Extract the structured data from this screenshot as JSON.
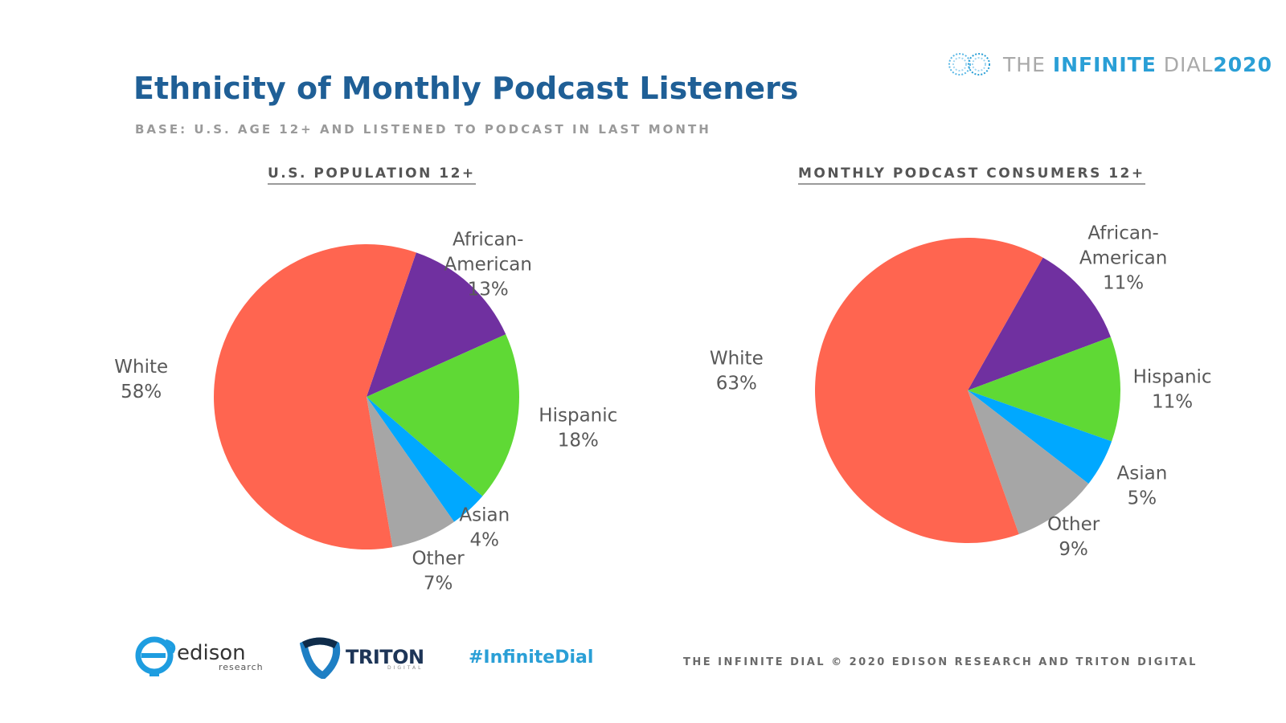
{
  "brand": {
    "prefix": "THE ",
    "name_bold": "INFINITE",
    "name_thin": " DIAL",
    "year": "2020"
  },
  "title": "Ethnicity of Monthly Podcast Listeners",
  "subtitle": "BASE: U.S. AGE 12+ AND LISTENED TO PODCAST IN LAST MONTH",
  "colors": {
    "White": "#ff6550",
    "African-American": "#7030a0",
    "Hispanic": "#5fd935",
    "Asian": "#00a8ff",
    "Other": "#a6a6a6"
  },
  "chart_data": [
    {
      "type": "pie",
      "title": "U.S. POPULATION 12+",
      "categories": [
        "African-American",
        "Hispanic",
        "Asian",
        "Other",
        "White"
      ],
      "values": [
        13,
        18,
        4,
        7,
        58
      ],
      "labels": [
        "African-\nAmerican\n13%",
        "Hispanic\n18%",
        "Asian\n4%",
        "Other\n7%",
        "White\n58%"
      ]
    },
    {
      "type": "pie",
      "title": "MONTHLY PODCAST CONSUMERS 12+",
      "categories": [
        "African-American",
        "Hispanic",
        "Asian",
        "Other",
        "White"
      ],
      "values": [
        11,
        11,
        5,
        9,
        63
      ],
      "labels": [
        "African-\nAmerican\n11%",
        "Hispanic\n11%",
        "Asian\n5%",
        "Other\n9%",
        "White\n63%"
      ]
    }
  ],
  "footer": {
    "edison": "edison",
    "edison_sub": "research",
    "triton": "TRITON",
    "triton_sub": "DIGITAL",
    "hashtag": "#InfiniteDial",
    "text": "THE INFINITE DIAL   © 2020 EDISON RESEARCH AND TRITON DIGITAL"
  }
}
